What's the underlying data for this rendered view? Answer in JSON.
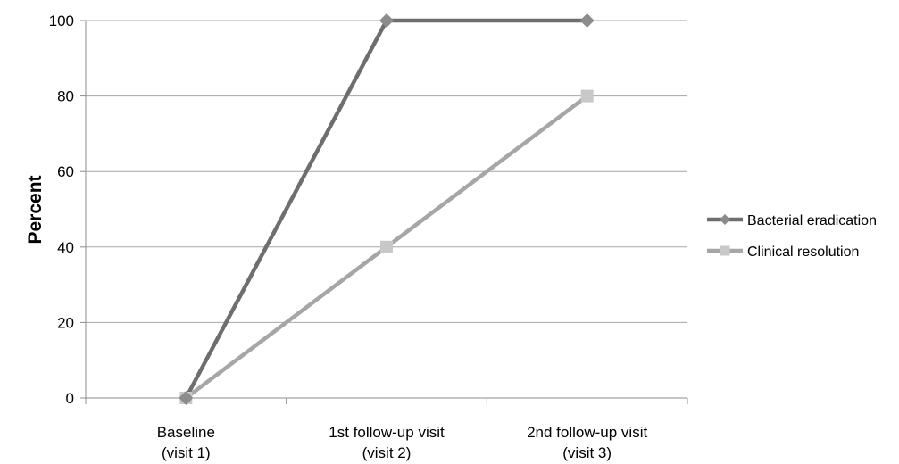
{
  "chart_data": {
    "type": "line",
    "title": "",
    "xlabel": "",
    "ylabel": "Percent",
    "ylim": [
      0,
      100
    ],
    "yticks": [
      0,
      20,
      40,
      60,
      80,
      100
    ],
    "grid": true,
    "legend_position": "right",
    "categories": [
      [
        "Baseline",
        "(visit 1)"
      ],
      [
        "1st follow-up visit",
        "(visit 2)"
      ],
      [
        "2nd follow-up visit",
        "(visit 3)"
      ]
    ],
    "series": [
      {
        "name": "Bacterial eradication",
        "values": [
          0,
          100,
          100
        ],
        "color": "#6e6e6e",
        "marker_color": "#8c8c8c",
        "marker": "diamond"
      },
      {
        "name": "Clinical resolution",
        "values": [
          0,
          40,
          80
        ],
        "color": "#a6a6a6",
        "marker_color": "#c8c8c8",
        "marker": "square"
      }
    ]
  }
}
